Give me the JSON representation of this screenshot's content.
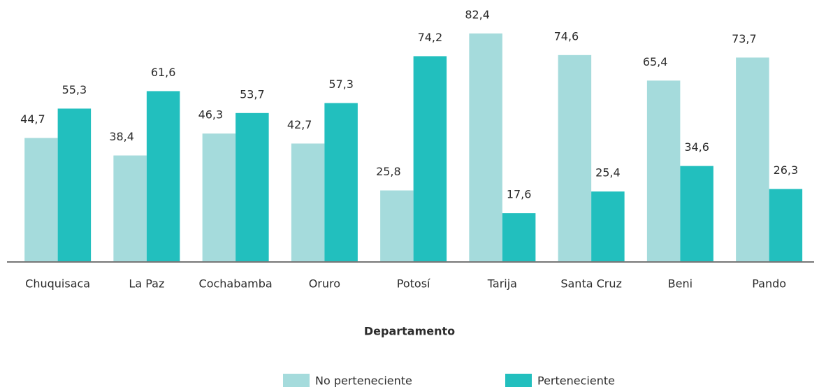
{
  "chart_data": {
    "type": "bar",
    "x_label": "Departamento",
    "categories": [
      "Chuquisaca",
      "La Paz",
      "Cochabamba",
      "Oruro",
      "Potosí",
      "Tarija",
      "Santa Cruz",
      "Beni",
      "Pando"
    ],
    "series": [
      {
        "name": "No perteneciente",
        "color": "#a5dbdc",
        "values": [
          44.7,
          38.4,
          46.3,
          42.7,
          25.8,
          82.4,
          74.6,
          65.4,
          73.7
        ],
        "value_labels": [
          "44,7",
          "38,4",
          "46,3",
          "42,7",
          "25,8",
          "82,4",
          "74,6",
          "65,4",
          "73,7"
        ]
      },
      {
        "name": "Perteneciente",
        "color": "#22bfbe",
        "values": [
          55.3,
          61.6,
          53.7,
          57.3,
          74.2,
          17.6,
          25.4,
          34.6,
          26.3
        ],
        "value_labels": [
          "55,3",
          "61,6",
          "53,7",
          "57,3",
          "74,2",
          "17,6",
          "25,4",
          "34,6",
          "26,3"
        ]
      }
    ]
  }
}
